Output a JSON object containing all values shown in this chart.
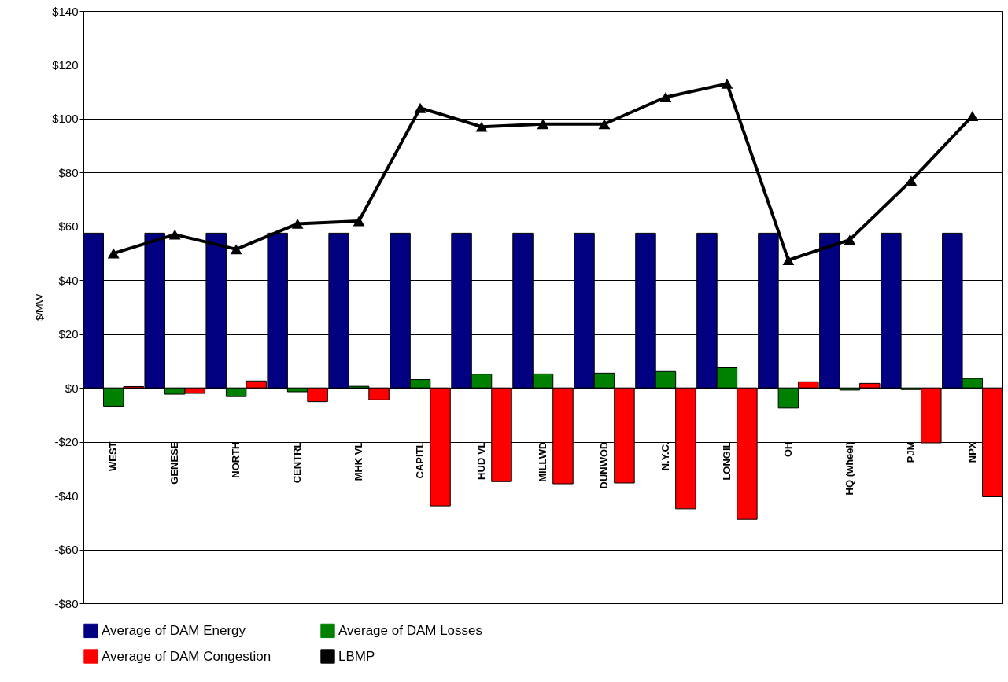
{
  "chart_data": {
    "type": "bar",
    "ylabel": "$/MW",
    "categories": [
      "WEST",
      "GENESE",
      "NORTH",
      "CENTRL",
      "MHK VL",
      "CAPITL",
      "HUD VL",
      "MILLWD",
      "DUNWOD",
      "N.Y.C.",
      "LONGIL",
      "OH",
      "HQ (wheel)",
      "PJM",
      "NPX"
    ],
    "series": [
      {
        "name": "Average of DAM Energy",
        "color": "#000080",
        "values": [
          57.5,
          57.5,
          57.5,
          57.5,
          57.5,
          57.5,
          57.5,
          57.5,
          57.5,
          57.5,
          57.5,
          57.5,
          57.5,
          57.5,
          57.5
        ]
      },
      {
        "name": "Average of DAM Losses",
        "color": "#008000",
        "values": [
          -6.8,
          -2.3,
          -3.2,
          -1.4,
          0.6,
          3.1,
          5.1,
          5.2,
          5.5,
          6.1,
          7.5,
          -7.5,
          -0.8,
          -0.6,
          3.5
        ]
      },
      {
        "name": "Average of DAM Congestion",
        "color": "#ff0000",
        "values": [
          0.5,
          -2.0,
          2.6,
          -5.1,
          -4.4,
          -43.8,
          -34.8,
          -35.6,
          -35.3,
          -44.9,
          -48.8,
          2.3,
          1.7,
          -20.4,
          -40.4
        ]
      },
      {
        "name": "LBMP",
        "type": "line",
        "color": "#000000",
        "marker": "triangle",
        "values": [
          50,
          57,
          51.5,
          61,
          62,
          104,
          97,
          98,
          98,
          108,
          113,
          47.5,
          55,
          77,
          101
        ]
      }
    ],
    "ylim": [
      -80,
      140
    ],
    "yticks": [
      {
        "value": -80,
        "label": "-$80"
      },
      {
        "value": -60,
        "label": "-$60"
      },
      {
        "value": -40,
        "label": "-$40"
      },
      {
        "value": -20,
        "label": "-$20"
      },
      {
        "value": 0,
        "label": "$0"
      },
      {
        "value": 20,
        "label": "$20"
      },
      {
        "value": 40,
        "label": "$40"
      },
      {
        "value": 60,
        "label": "$60"
      },
      {
        "value": 80,
        "label": "$80"
      },
      {
        "value": 100,
        "label": "$100"
      },
      {
        "value": 120,
        "label": "$120"
      },
      {
        "value": 140,
        "label": "$140"
      }
    ],
    "grid": "y",
    "legend": "bottom"
  }
}
